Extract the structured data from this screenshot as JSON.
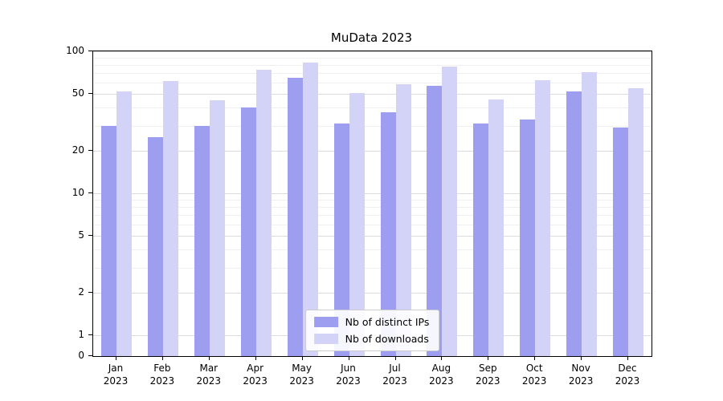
{
  "chart_data": {
    "type": "bar",
    "title": "MuData 2023",
    "y_scale": "symlog",
    "ylim": [
      0,
      100
    ],
    "grid": true,
    "legend_position": "lower center",
    "year": "2023",
    "categories": [
      "Jan",
      "Feb",
      "Mar",
      "Apr",
      "May",
      "Jun",
      "Jul",
      "Aug",
      "Sep",
      "Oct",
      "Nov",
      "Dec"
    ],
    "y_ticks": [
      0,
      1,
      2,
      5,
      10,
      20,
      50,
      100
    ],
    "series": [
      {
        "name": "Nb of distinct IPs",
        "color": "#9e9ef0",
        "values": [
          30,
          25,
          30,
          40,
          65,
          31,
          37,
          57,
          31,
          33,
          52,
          29
        ]
      },
      {
        "name": "Nb of downloads",
        "color": "#d3d3f8",
        "values": [
          52,
          62,
          45,
          74,
          83,
          51,
          59,
          78,
          46,
          63,
          71,
          55
        ]
      }
    ]
  }
}
